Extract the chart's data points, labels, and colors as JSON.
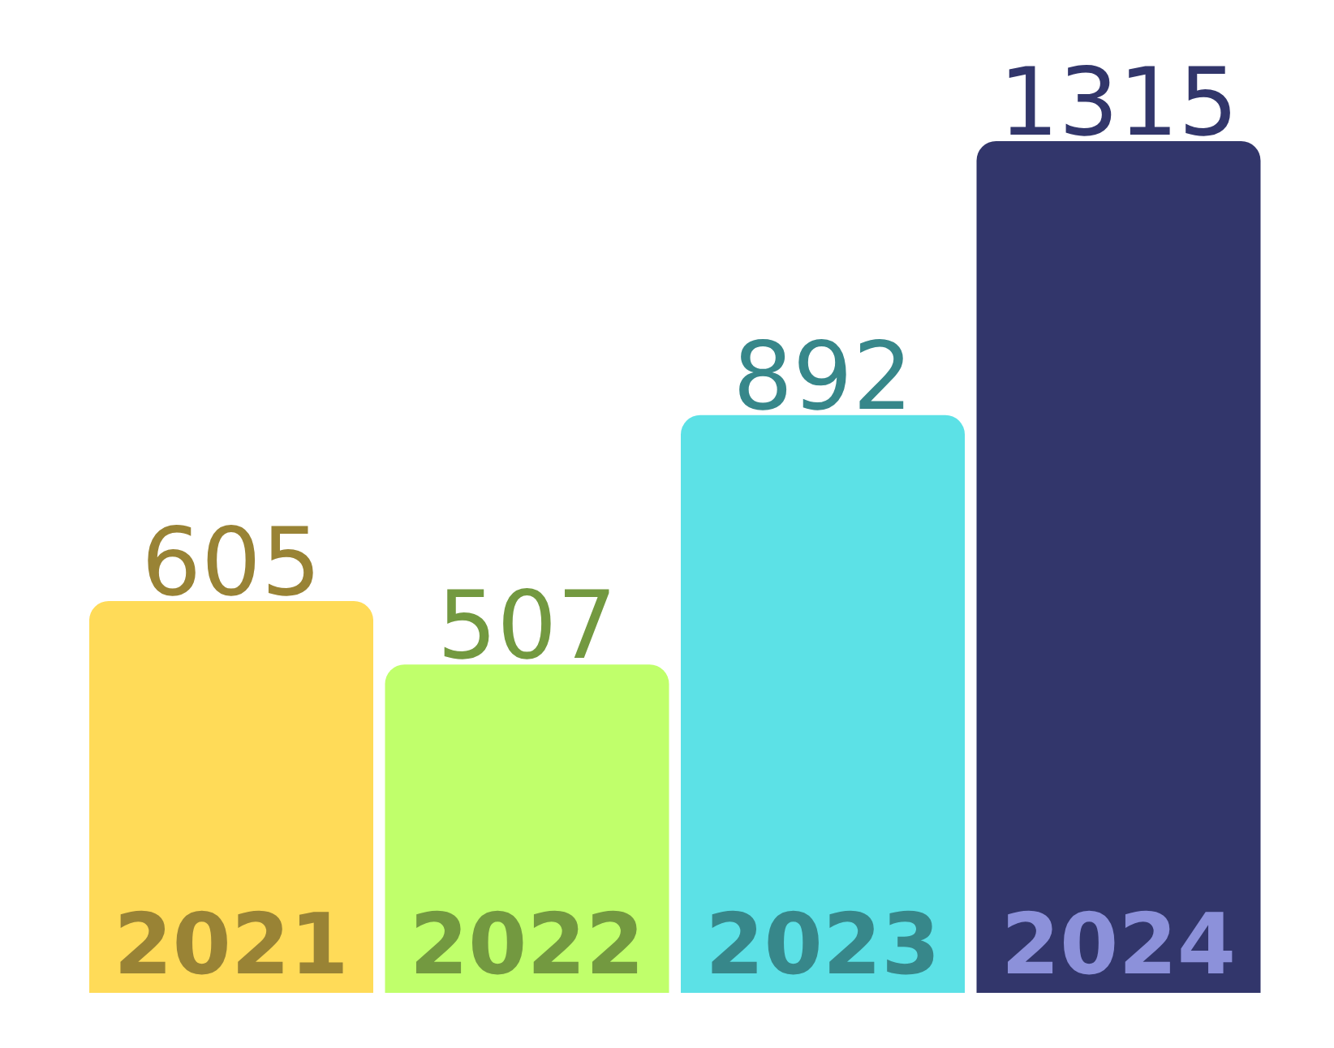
{
  "chart_data": {
    "type": "bar",
    "categories": [
      "2021",
      "2022",
      "2023",
      "2024"
    ],
    "values": [
      605,
      507,
      892,
      1315
    ],
    "colors": [
      "#ffdb58",
      "#c0ff6b",
      "#5ce1e6",
      "#32366b"
    ],
    "data_labels": true
  }
}
